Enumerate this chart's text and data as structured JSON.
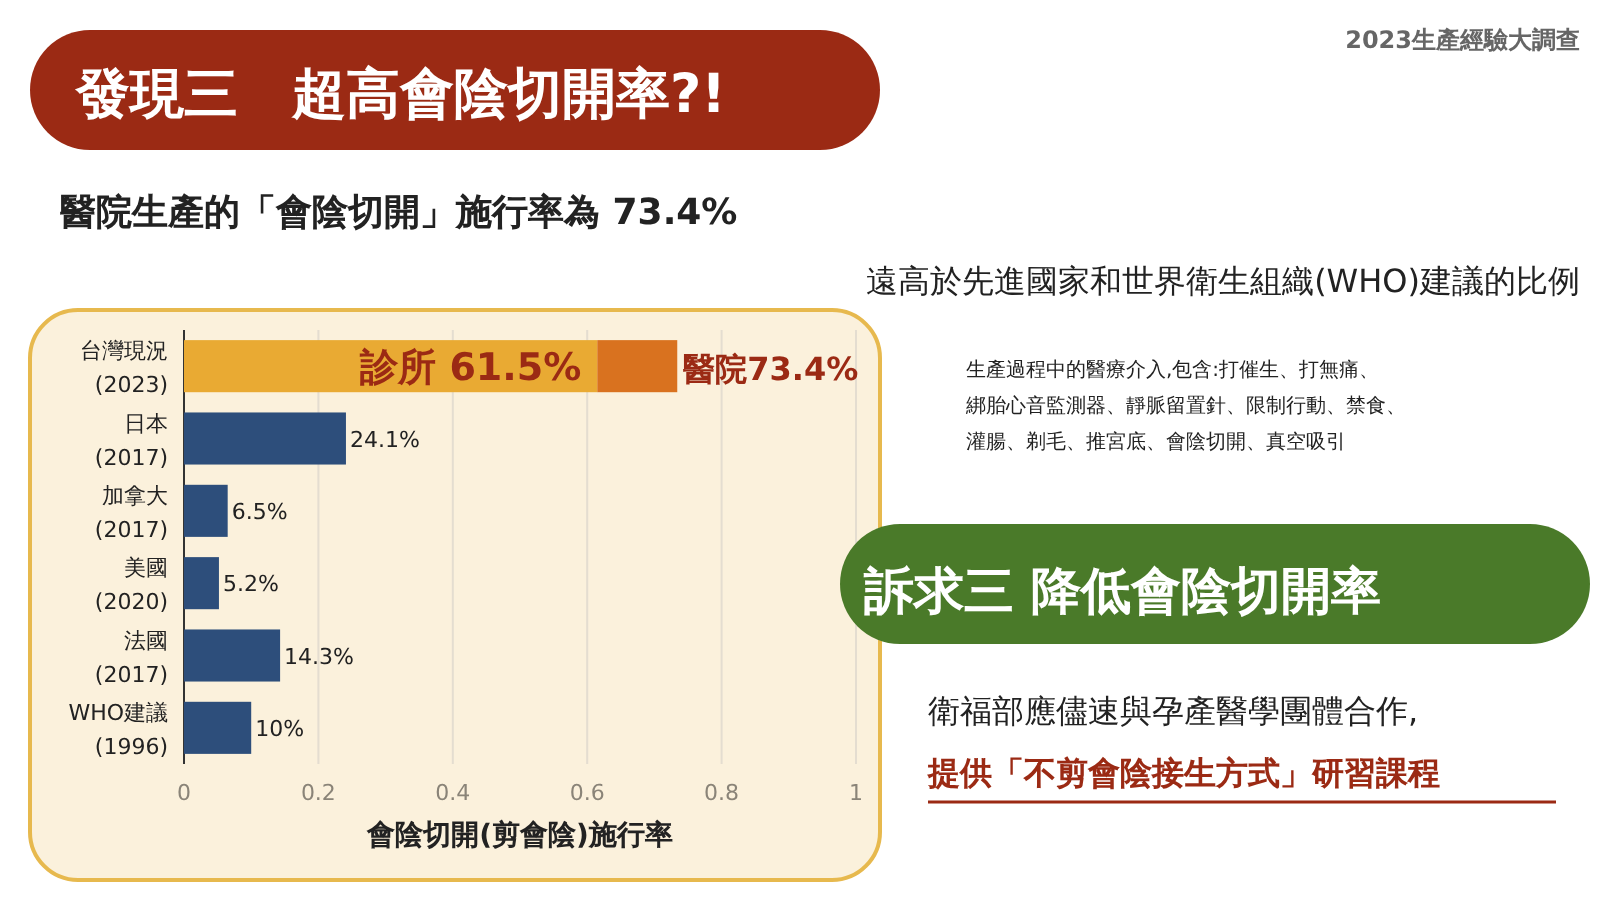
{
  "chart_data": {
    "type": "bar",
    "orientation": "horizontal",
    "stacked": true,
    "title": "發現三　超高會陰切開率?!",
    "subtitle": "醫院生產的「會陰切開」施行率為 73.4%",
    "xlabel": "會陰切開(剪會陰)施行率",
    "categories": [
      "台灣現況\n(2023)",
      "日本\n(2017)",
      "加拿大\n(2017)",
      "美國\n(2020)",
      "法國\n(2017)",
      "WHO建議\n(1996)"
    ],
    "series": [
      {
        "color": "#e9aa33",
        "values": [
          0.615,
          null,
          null,
          null,
          null,
          null
        ],
        "value_labels": [
          "診所 61.5%",
          null,
          null,
          null,
          null,
          null
        ]
      },
      {
        "color": "#d9721f",
        "values": [
          0.119,
          null,
          null,
          null,
          null,
          null
        ]
      },
      {
        "color": "#2d4e7b",
        "values": [
          null,
          0.241,
          0.065,
          0.052,
          0.143,
          0.1
        ],
        "value_labels": [
          null,
          "24.1%",
          "6.5%",
          "5.2%",
          "14.3%",
          "10%"
        ]
      }
    ],
    "totals": [
      "醫院73.4%",
      null,
      null,
      null,
      null,
      null
    ],
    "xlim": [
      0,
      1
    ],
    "xticks": [
      0,
      0.2,
      0.4,
      0.6,
      0.8,
      1
    ],
    "grid": "x",
    "annotations": [
      "2023生產經驗大調查",
      "遠高於先進國家和世界衛生組織(WHO)建議的比例",
      "生產過程中的醫療介入,包含:打催生、打無痛、",
      "綁胎心音監測器、靜脈留置針、限制行動、禁食、",
      "灌腸、剃毛、推宮底、會陰切開、真空吸引",
      "訴求三 降低會陰切開率",
      "衛福部應儘速與孕產醫學團體合作,",
      "提供「不剪會陰接生方式」研習課程"
    ]
  }
}
